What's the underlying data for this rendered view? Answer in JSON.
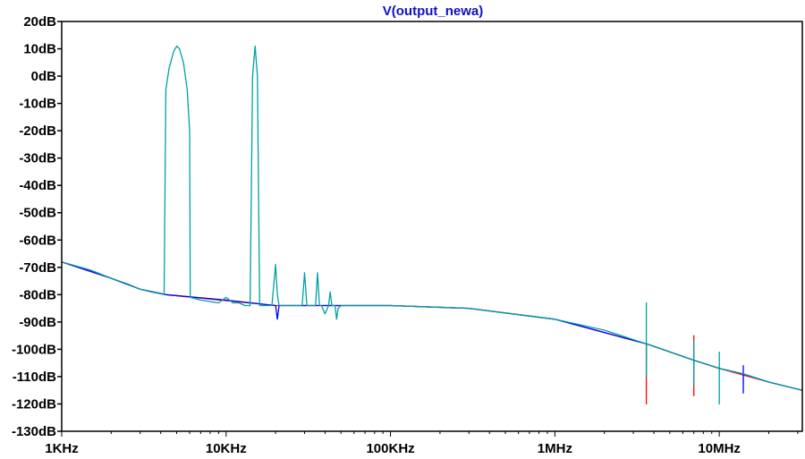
{
  "chart_data": {
    "type": "line",
    "title": "V(output_newa)",
    "title_color": "#1010c0",
    "xlabel": "",
    "ylabel": "",
    "x_scale": "log",
    "xlim": [
      1000,
      32000000
    ],
    "ylim": [
      -130,
      20
    ],
    "grid": false,
    "x_ticks": [
      {
        "value": 1000,
        "label": "1KHz"
      },
      {
        "value": 10000,
        "label": "10KHz"
      },
      {
        "value": 100000,
        "label": "100KHz"
      },
      {
        "value": 1000000,
        "label": "1MHz"
      },
      {
        "value": 10000000,
        "label": "10MHz"
      }
    ],
    "y_ticks": [
      {
        "value": 20,
        "label": "20dB"
      },
      {
        "value": 10,
        "label": "10dB"
      },
      {
        "value": 0,
        "label": "0dB"
      },
      {
        "value": -10,
        "label": "-10dB"
      },
      {
        "value": -20,
        "label": "-20dB"
      },
      {
        "value": -30,
        "label": "-30dB"
      },
      {
        "value": -40,
        "label": "-40dB"
      },
      {
        "value": -50,
        "label": "-50dB"
      },
      {
        "value": -60,
        "label": "-60dB"
      },
      {
        "value": -70,
        "label": "-70dB"
      },
      {
        "value": -80,
        "label": "-80dB"
      },
      {
        "value": -90,
        "label": "-90dB"
      },
      {
        "value": -100,
        "label": "-100dB"
      },
      {
        "value": -110,
        "label": "-110dB"
      },
      {
        "value": -120,
        "label": "-120dB"
      },
      {
        "value": -130,
        "label": "-130dB"
      }
    ],
    "series": [
      {
        "color": "#ff0000",
        "x": [
          1000,
          2000,
          3000,
          4300,
          20000,
          35000,
          100000,
          300000,
          1000000,
          3600000,
          3600000,
          3600000,
          3610000,
          7000000,
          7000000,
          7000000,
          7010000,
          10000000,
          20000000,
          32000000
        ],
        "y": [
          -68,
          -74,
          -78,
          -80,
          -84,
          -84,
          -84,
          -85,
          -89,
          -98,
          -120,
          -98,
          -98,
          -104,
          -95,
          -117,
          -104,
          -107,
          -112,
          -115
        ]
      },
      {
        "color": "#0000ff",
        "x": [
          1000,
          2000,
          3000,
          4300,
          10000,
          20000,
          20500,
          21000,
          35000,
          100000,
          300000,
          1000000,
          3600000,
          7000000,
          10000000,
          14000000,
          14000000,
          14000000,
          14010000,
          20000000,
          32000000
        ],
        "y": [
          -68,
          -74,
          -78,
          -80,
          -82,
          -84,
          -89,
          -84,
          -84,
          -84,
          -85,
          -89,
          -98,
          -104,
          -107,
          -109,
          -106,
          -116,
          -109,
          -112,
          -115
        ]
      },
      {
        "color": "#00a0a0",
        "x": [
          1000,
          1500,
          2000,
          2500,
          3000,
          3500,
          4200,
          4300,
          4500,
          4800,
          5000,
          5200,
          5500,
          5800,
          6000,
          6050,
          7000,
          9000,
          10000,
          11000,
          12000,
          13000,
          14000,
          14500,
          15000,
          15500,
          16000,
          16100,
          17000,
          19000,
          20000,
          20500,
          21000,
          21500,
          25000,
          29000,
          30000,
          31000,
          32000,
          35000,
          36000,
          37000,
          38000,
          40000,
          42000,
          43000,
          44000,
          46000,
          47000,
          48000,
          50000,
          100000,
          300000,
          1000000,
          2000000,
          3600000,
          3600000,
          3600000,
          3610000,
          7000000,
          7000000,
          7000000,
          7010000,
          10000000,
          10000000,
          10000000,
          10010000,
          14000000,
          20000000,
          32000000
        ],
        "y": [
          -68,
          -71,
          -74,
          -76,
          -78,
          -79,
          -80,
          -5,
          3,
          9,
          11,
          10,
          5,
          -5,
          -20,
          -81,
          -82,
          -83,
          -81,
          -83,
          -83,
          -84,
          -84,
          0,
          11,
          0,
          -84,
          -84,
          -84,
          -84,
          -69,
          -80,
          -84,
          -84,
          -84,
          -84,
          -72,
          -84,
          -84,
          -84,
          -72,
          -84,
          -84,
          -87,
          -84,
          -79,
          -84,
          -84,
          -89,
          -85,
          -84,
          -84,
          -85,
          -89,
          -93,
          -98,
          -83,
          -110,
          -98,
          -104,
          -97,
          -113,
          -104,
          -107,
          -101,
          -120,
          -107,
          -109,
          -112,
          -115
        ]
      }
    ]
  }
}
